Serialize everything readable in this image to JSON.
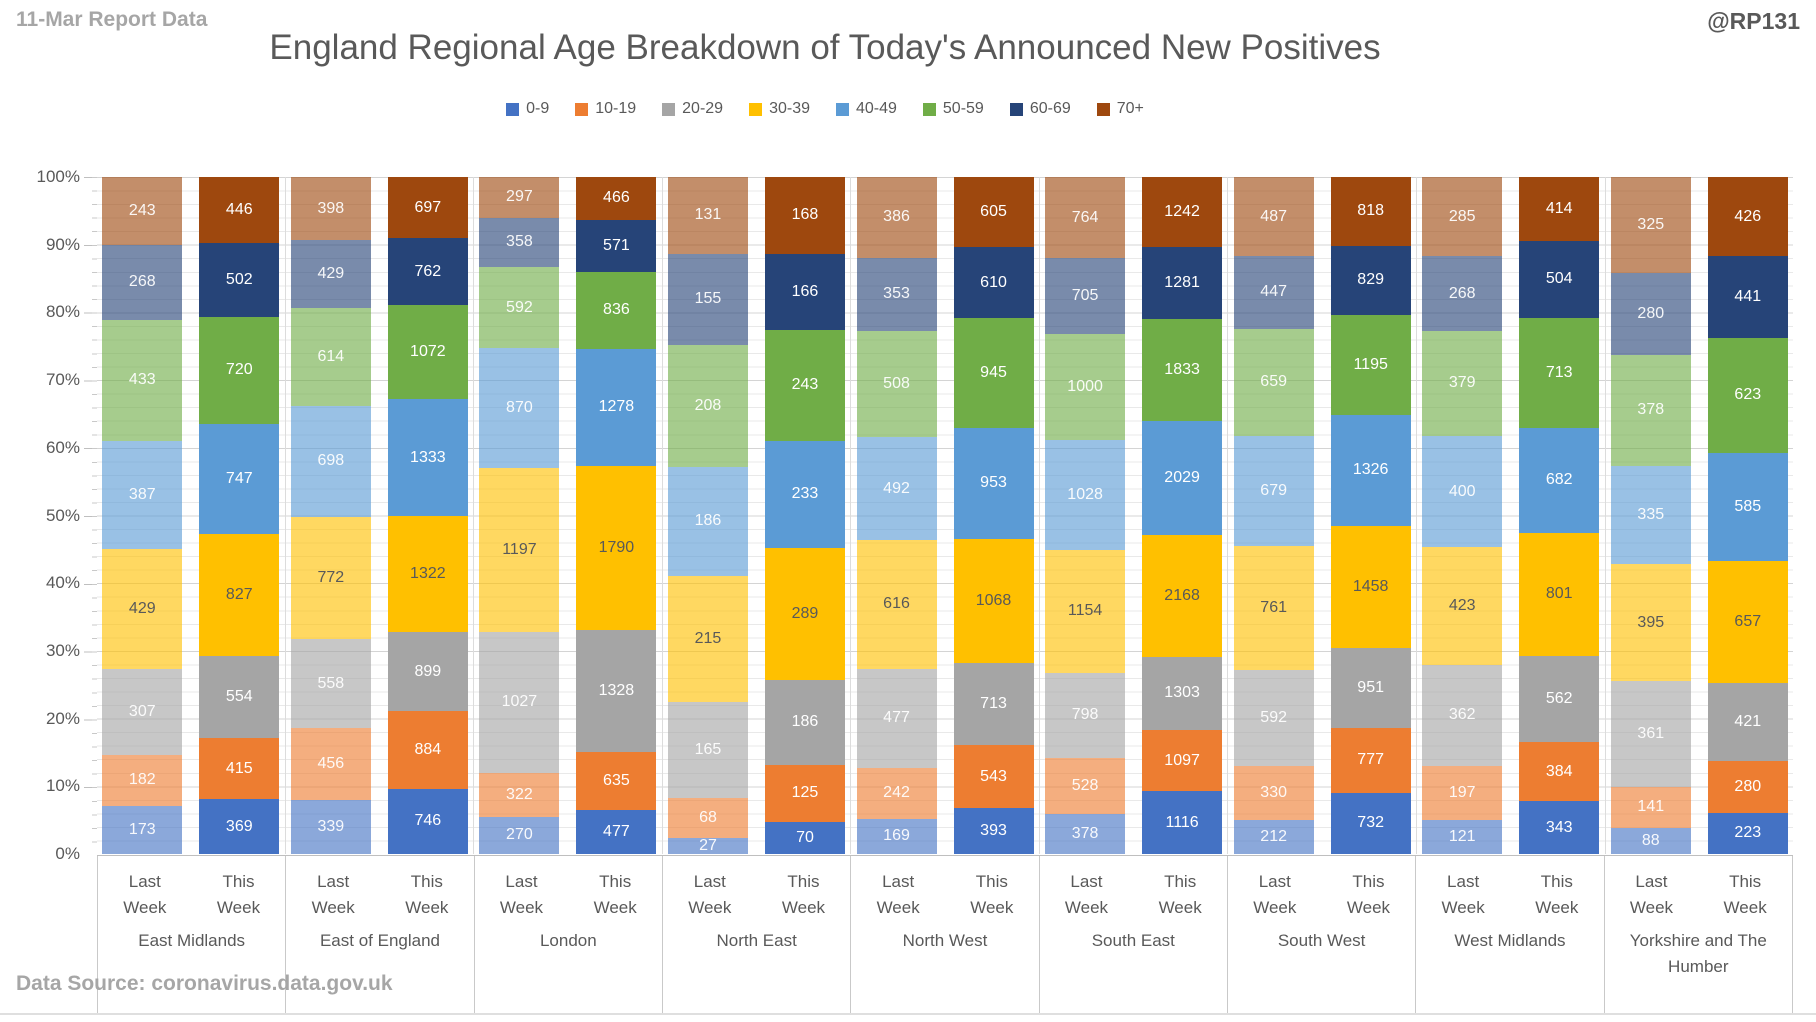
{
  "header": {
    "report_label": "11-Mar Report Data",
    "handle": "@RP131",
    "title": "England Regional Age Breakdown of Today's Announced New Positives"
  },
  "footer": {
    "source": "Data Source: coronavirus.data.gov.uk"
  },
  "chart_data": {
    "type": "bar",
    "stacked": true,
    "normalized": "percent_of_bar_total",
    "title": "England Regional Age Breakdown of Today's Announced New Positives",
    "legend_position": "top",
    "grid": {
      "minor_step_pct": 2,
      "major_step_pct": 10
    },
    "y_ticks": [
      "0%",
      "10%",
      "20%",
      "30%",
      "40%",
      "50%",
      "60%",
      "70%",
      "80%",
      "90%",
      "100%"
    ],
    "age_groups": [
      "0-9",
      "10-19",
      "20-29",
      "30-39",
      "40-49",
      "50-59",
      "60-69",
      "70+"
    ],
    "colors_this_week": [
      "#4472C4",
      "#ED7D31",
      "#A5A5A5",
      "#FFC000",
      "#5B9BD5",
      "#70AD47",
      "#264478",
      "#9E480E"
    ],
    "last_week_alpha": 0.62,
    "label_colors": [
      "#FFFFFF",
      "#FFFFFF",
      "#FFFFFF",
      "#595959",
      "#FFFFFF",
      "#FFFFFF",
      "#FFFFFF",
      "#FFFFFF"
    ],
    "week_labels": [
      "Last Week",
      "This Week"
    ],
    "regions": [
      {
        "name": "East Midlands",
        "last_week": [
          173,
          182,
          307,
          429,
          387,
          433,
          268,
          243
        ],
        "this_week": [
          369,
          415,
          554,
          827,
          747,
          720,
          502,
          446
        ]
      },
      {
        "name": "East of England",
        "last_week": [
          339,
          456,
          558,
          772,
          698,
          614,
          429,
          398
        ],
        "this_week": [
          746,
          884,
          899,
          1322,
          1333,
          1072,
          762,
          697
        ]
      },
      {
        "name": "London",
        "last_week": [
          270,
          322,
          1027,
          1197,
          870,
          592,
          358,
          297
        ],
        "this_week": [
          477,
          635,
          1328,
          1790,
          1278,
          836,
          571,
          466
        ]
      },
      {
        "name": "North East",
        "last_week": [
          27,
          68,
          165,
          215,
          186,
          208,
          155,
          131
        ],
        "this_week": [
          70,
          125,
          186,
          289,
          233,
          243,
          166,
          168
        ]
      },
      {
        "name": "North West",
        "last_week": [
          169,
          242,
          477,
          616,
          492,
          508,
          353,
          386
        ],
        "this_week": [
          393,
          543,
          713,
          1068,
          953,
          945,
          610,
          605
        ]
      },
      {
        "name": "South East",
        "last_week": [
          378,
          528,
          798,
          1154,
          1028,
          1000,
          705,
          764
        ],
        "this_week": [
          1116,
          1097,
          1303,
          2168,
          2029,
          1833,
          1281,
          1242
        ]
      },
      {
        "name": "South West",
        "last_week": [
          212,
          330,
          592,
          761,
          679,
          659,
          447,
          487
        ],
        "this_week": [
          732,
          777,
          951,
          1458,
          1326,
          1195,
          829,
          818
        ]
      },
      {
        "name": "West Midlands",
        "last_week": [
          121,
          197,
          362,
          423,
          400,
          379,
          268,
          285
        ],
        "this_week": [
          343,
          384,
          562,
          801,
          682,
          713,
          504,
          414
        ]
      },
      {
        "name": "Yorkshire and The Humber",
        "last_week": [
          88,
          141,
          361,
          395,
          335,
          378,
          280,
          325
        ],
        "this_week": [
          223,
          280,
          421,
          657,
          585,
          623,
          441,
          426
        ]
      }
    ]
  }
}
